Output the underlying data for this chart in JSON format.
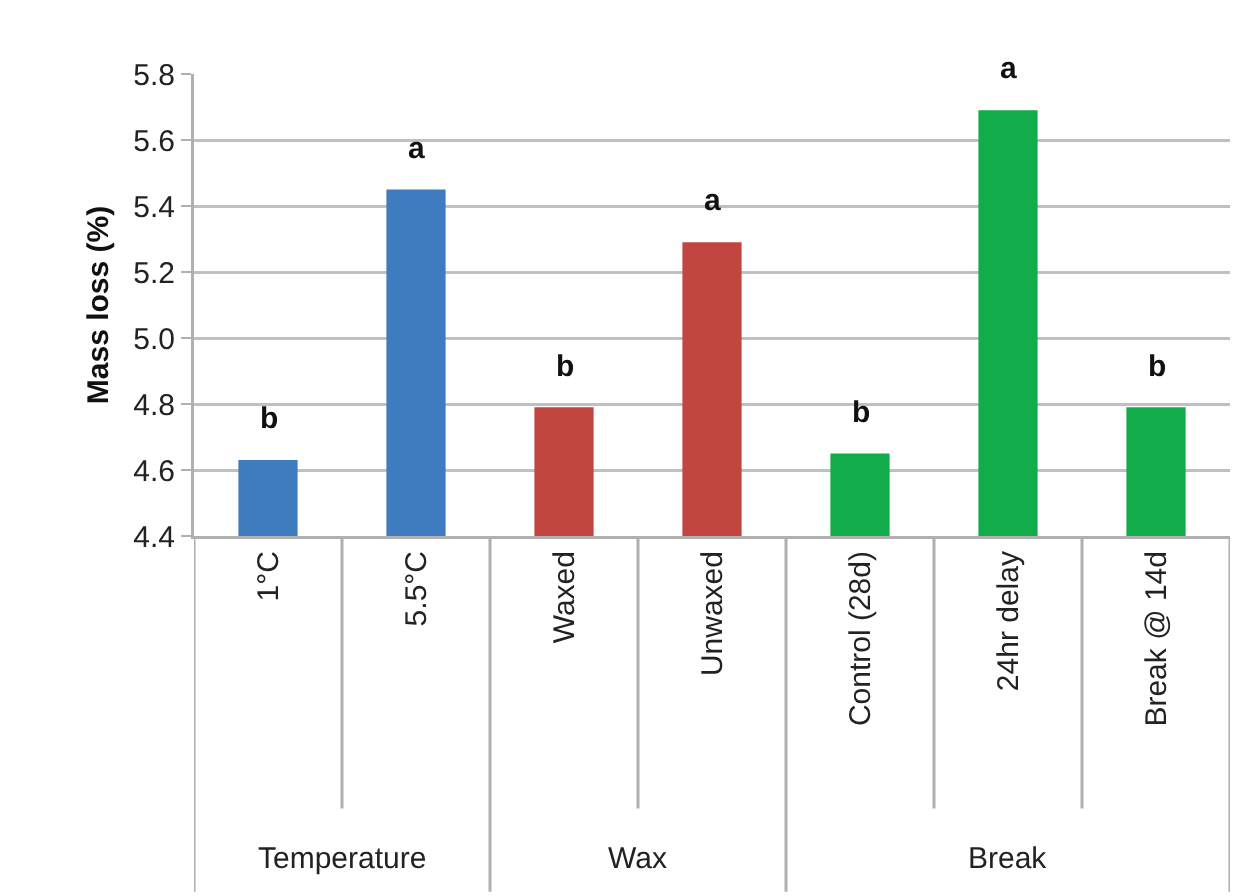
{
  "chart_data": {
    "type": "bar",
    "ylabel": "Mass loss (%)",
    "categories": [
      "1°C",
      "5.5°C",
      "Waxed",
      "Unwaxed",
      "Control (28d)",
      "24hr delay",
      "Break @ 14d"
    ],
    "values": [
      4.63,
      5.45,
      4.79,
      5.29,
      4.65,
      5.69,
      4.79
    ],
    "colors": [
      "#3f7bbf",
      "#3f7bbf",
      "#c0463f",
      "#c0463f",
      "#12ad4a",
      "#12ad4a",
      "#12ad4a"
    ],
    "ylim": [
      4.4,
      5.8
    ],
    "yticks": [
      {
        "value": 4.4,
        "label": "4.4"
      },
      {
        "value": 4.6,
        "label": "4.6"
      },
      {
        "value": 4.8,
        "label": "4.8"
      },
      {
        "value": 5.0,
        "label": "5.0"
      },
      {
        "value": 5.2,
        "label": "5.2"
      },
      {
        "value": 5.4,
        "label": "5.4"
      },
      {
        "value": 5.6,
        "label": "5.6"
      },
      {
        "value": 5.8,
        "label": "5.8"
      }
    ],
    "grid": "y",
    "annotations": [
      {
        "text": "b",
        "x": "1°C",
        "y": 4.63
      },
      {
        "text": "a",
        "x": "5.5°C",
        "y": 5.45
      },
      {
        "text": "b",
        "x": "Waxed",
        "y": 4.79
      },
      {
        "text": "a",
        "x": "Unwaxed",
        "y": 5.29
      },
      {
        "text": "b",
        "x": "Control (28d)",
        "y": 4.65
      },
      {
        "text": "a",
        "x": "24hr delay",
        "y": 5.69
      },
      {
        "text": "b",
        "x": "Break @ 14d",
        "y": 4.79
      },
      "Temperature",
      "Wax",
      "Break"
    ]
  }
}
